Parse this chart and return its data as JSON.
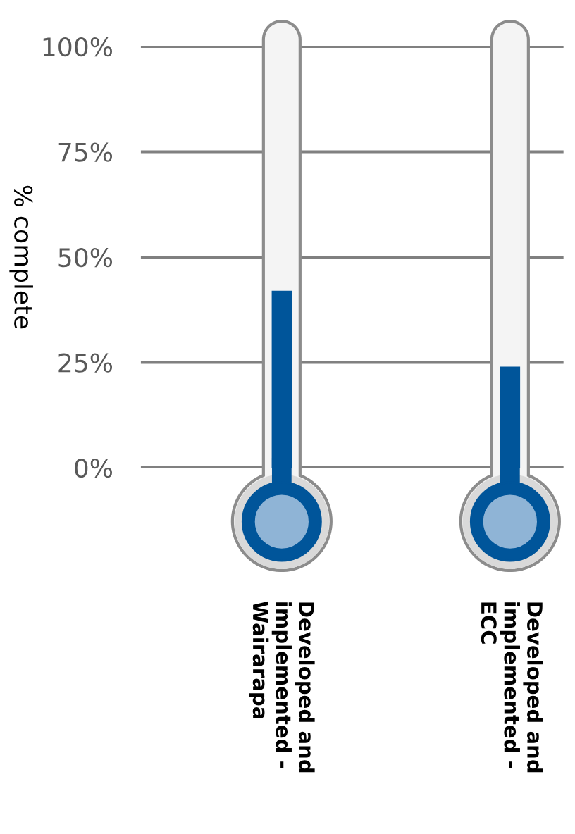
{
  "chart_data": {
    "type": "bar",
    "ylabel": "% complete",
    "categories": [
      "Developed and\nimplemented -\nWairarapa",
      "Developed and\nimplemented -\nECC"
    ],
    "values": [
      42,
      24
    ],
    "color": "#00559a",
    "ylim": [
      0,
      100
    ],
    "yticks": [
      {
        "value": 0,
        "label": "0%"
      },
      {
        "value": 25,
        "label": "25%"
      },
      {
        "value": 50,
        "label": "50%"
      },
      {
        "value": 75,
        "label": "75%"
      },
      {
        "value": 100,
        "label": "100%"
      }
    ],
    "grid": "y"
  }
}
